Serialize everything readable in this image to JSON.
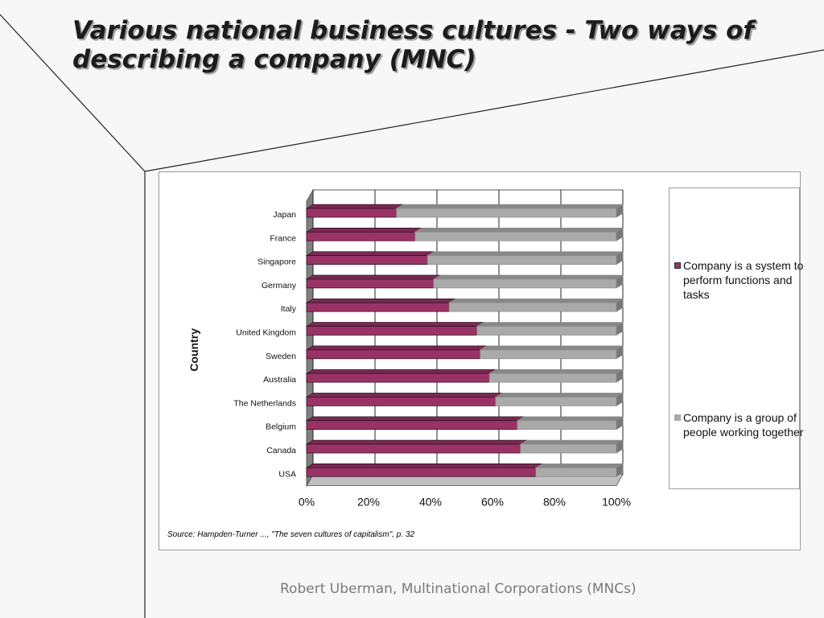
{
  "slide": {
    "title": "Various national business cultures - Two ways of describing a company (MNC)",
    "footer": "Robert Uberman, Multinational Corporations (MNCs)"
  },
  "source_note": "Source: Hampden-Turner ..., \"The seven cultures of capitalism\", p. 32",
  "chart_data": {
    "type": "bar",
    "orientation": "horizontal",
    "stacked": "100%",
    "three_d": true,
    "ylabel": "Country",
    "categories": [
      "Japan",
      "France",
      "Singapore",
      "Germany",
      "Italy",
      "United Kingdom",
      "Sweden",
      "Australia",
      "The Netherlands",
      "Belgium",
      "Canada",
      "USA"
    ],
    "series": [
      {
        "name": "Company is a system to perform functions and tasks",
        "color": "#993366",
        "values": [
          29,
          35,
          39,
          41,
          46,
          55,
          56,
          59,
          61,
          68,
          69,
          74
        ]
      },
      {
        "name": "Company is a group of people working together",
        "color": "#aaaaaa",
        "values": [
          71,
          65,
          61,
          59,
          54,
          45,
          44,
          41,
          39,
          32,
          31,
          26
        ]
      }
    ],
    "x_ticks": [
      "0%",
      "20%",
      "40%",
      "60%",
      "80%",
      "100%"
    ],
    "xlim": [
      0,
      100
    ],
    "grid": true,
    "legend_position": "right"
  }
}
